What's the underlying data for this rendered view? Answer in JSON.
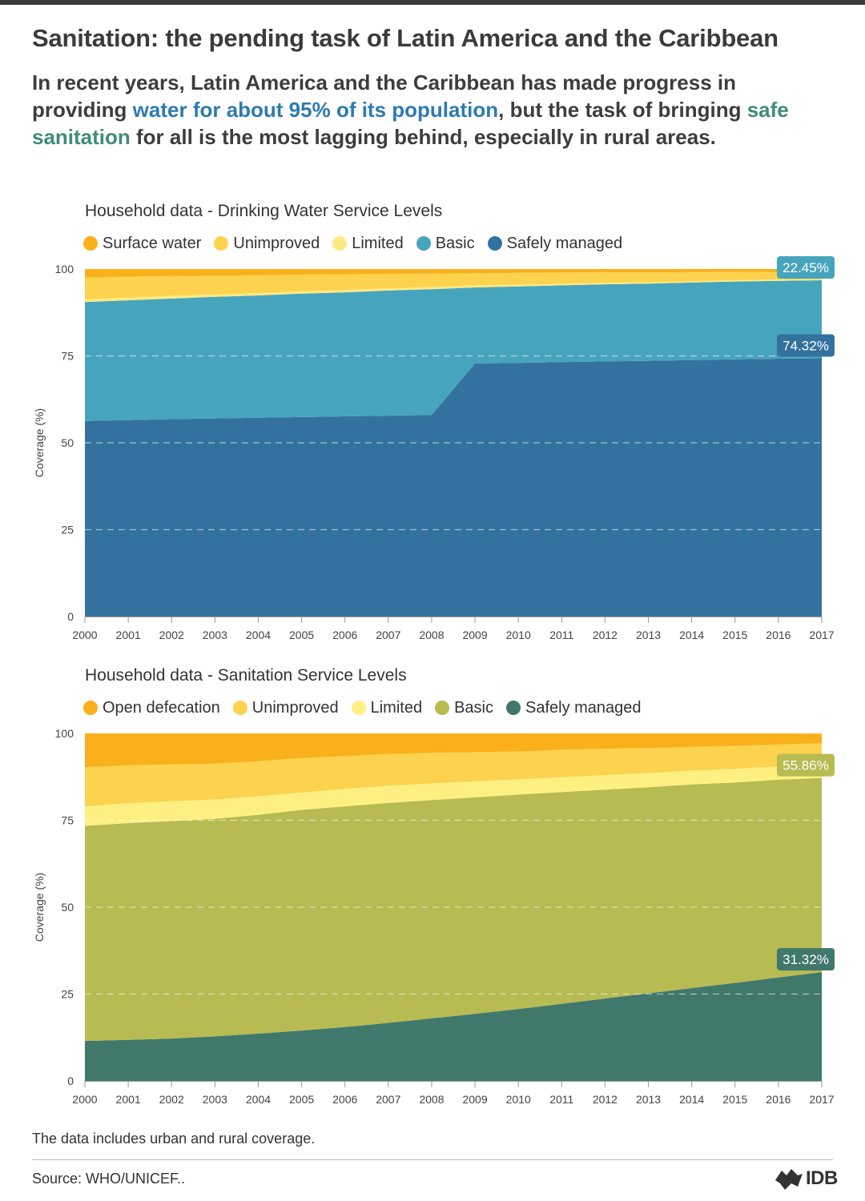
{
  "header": {
    "title": "Sanitation: the pending task of Latin America and the Caribbean",
    "intro_1": "In recent years, Latin America and the Caribbean has made progress in providing ",
    "intro_hl_1": "water for about 95% of its population",
    "intro_2": ", but the task of bringing ",
    "intro_hl_2": "safe sanitation",
    "intro_3": " for all is the most lagging behind, especially in rural areas."
  },
  "footer": {
    "note": "The data includes urban and rural coverage.",
    "source": "Source: WHO/UNICEF..",
    "logo_text": "IDB"
  },
  "chart_data": [
    {
      "type": "area",
      "stacked": true,
      "title": "Household data - Drinking Water Service Levels",
      "ylabel": "Coverage (%)",
      "xlabel": "",
      "ylim": [
        0,
        100
      ],
      "yticks": [
        0,
        25,
        50,
        75,
        100
      ],
      "grid": "dashed horizontal",
      "legend_position": "top-left",
      "x": [
        "2000",
        "2001",
        "2002",
        "2003",
        "2004",
        "2005",
        "2006",
        "2007",
        "2008",
        "2009",
        "2010",
        "2011",
        "2012",
        "2013",
        "2014",
        "2015",
        "2016",
        "2017"
      ],
      "series": [
        {
          "name": "Safely managed",
          "color": "#33729e",
          "values": [
            56.3,
            56.5,
            56.8,
            57.0,
            57.2,
            57.4,
            57.6,
            57.8,
            58.0,
            72.8,
            73.0,
            73.2,
            73.4,
            73.6,
            73.8,
            74.0,
            74.2,
            74.32
          ]
        },
        {
          "name": "Basic",
          "color": "#47a4bd",
          "values": [
            34.2,
            34.5,
            34.7,
            35.0,
            35.2,
            35.5,
            35.7,
            36.0,
            36.2,
            21.9,
            22.0,
            22.1,
            22.2,
            22.2,
            22.3,
            22.4,
            22.4,
            22.45
          ]
        },
        {
          "name": "Limited",
          "color": "#fde982",
          "values": [
            0.8,
            0.8,
            0.8,
            0.7,
            0.7,
            0.7,
            0.7,
            0.6,
            0.6,
            0.6,
            0.5,
            0.5,
            0.5,
            0.4,
            0.4,
            0.4,
            0.4,
            0.3
          ]
        },
        {
          "name": "Unimproved",
          "color": "#fcd24e",
          "values": [
            6.3,
            6.0,
            5.7,
            5.4,
            5.1,
            4.8,
            4.5,
            4.2,
            3.9,
            3.5,
            3.4,
            3.2,
            3.0,
            2.8,
            2.6,
            2.4,
            2.2,
            2.0
          ]
        },
        {
          "name": "Surface water",
          "color": "#f9b01a",
          "values": [
            2.4,
            2.2,
            2.0,
            1.9,
            1.8,
            1.6,
            1.5,
            1.4,
            1.3,
            1.2,
            1.1,
            1.0,
            0.9,
            1.0,
            0.9,
            0.8,
            0.8,
            0.93
          ]
        }
      ],
      "annotations": [
        {
          "series": "Basic",
          "x": "2017",
          "label": "22.45%",
          "color": "#47a4bd"
        },
        {
          "series": "Safely managed",
          "x": "2017",
          "label": "74.32%",
          "color": "#33729e"
        }
      ]
    },
    {
      "type": "area",
      "stacked": true,
      "title": "Household data - Sanitation Service Levels",
      "ylabel": "Coverage (%)",
      "xlabel": "",
      "ylim": [
        0,
        100
      ],
      "yticks": [
        0,
        25,
        50,
        75,
        100
      ],
      "grid": "dashed horizontal",
      "legend_position": "top-left",
      "x": [
        "2000",
        "2001",
        "2002",
        "2003",
        "2004",
        "2005",
        "2006",
        "2007",
        "2008",
        "2009",
        "2010",
        "2011",
        "2012",
        "2013",
        "2014",
        "2015",
        "2016",
        "2017"
      ],
      "series": [
        {
          "name": "Safely managed",
          "color": "#40786c",
          "values": [
            11.5,
            11.8,
            12.2,
            12.8,
            13.6,
            14.5,
            15.5,
            16.7,
            18.0,
            19.3,
            20.7,
            22.2,
            23.7,
            25.2,
            26.7,
            28.2,
            29.8,
            31.32
          ]
        },
        {
          "name": "Basic",
          "color": "#b7bb52",
          "values": [
            61.9,
            62.4,
            62.6,
            62.6,
            63.0,
            63.5,
            63.5,
            63.3,
            62.8,
            62.3,
            61.7,
            60.9,
            60.1,
            59.3,
            58.6,
            57.7,
            56.9,
            55.86
          ]
        },
        {
          "name": "Limited",
          "color": "#fdf081",
          "values": [
            5.6,
            5.7,
            5.7,
            5.6,
            5.3,
            5.0,
            5.0,
            4.9,
            4.8,
            4.6,
            4.4,
            4.3,
            4.2,
            4.1,
            4.0,
            3.9,
            3.8,
            3.7
          ]
        },
        {
          "name": "Unimproved",
          "color": "#fcd24e",
          "values": [
            11.3,
            10.9,
            10.6,
            10.3,
            10.1,
            9.9,
            9.5,
            9.2,
            8.8,
            8.4,
            8.0,
            7.9,
            7.6,
            7.2,
            6.8,
            6.6,
            6.3,
            6.3
          ]
        },
        {
          "name": "Open defecation",
          "color": "#f9b01a",
          "values": [
            9.7,
            9.2,
            8.9,
            8.7,
            8.0,
            7.1,
            6.5,
            5.9,
            5.6,
            5.4,
            5.2,
            4.7,
            4.4,
            4.2,
            3.9,
            3.6,
            3.2,
            2.8
          ]
        }
      ],
      "annotations": [
        {
          "series": "Basic",
          "x": "2017",
          "label": "55.86%",
          "color": "#b7bb52"
        },
        {
          "series": "Safely managed",
          "x": "2017",
          "label": "31.32%",
          "color": "#40786c"
        }
      ]
    }
  ]
}
